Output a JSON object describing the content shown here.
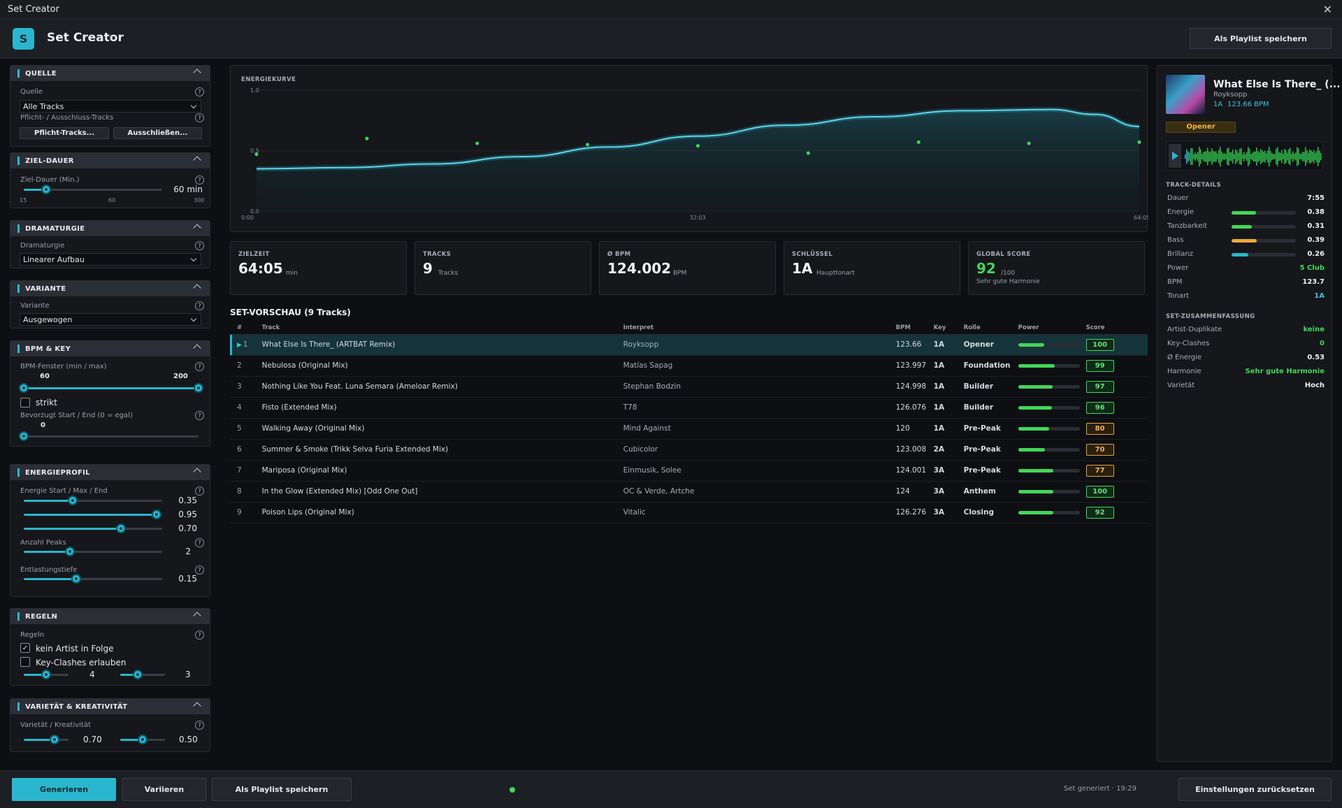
{
  "window": {
    "title": "Set Creator"
  },
  "header": {
    "logo_letter": "S",
    "title": "Set Creator",
    "playlist_button": "Als Playlist speichern"
  },
  "source": {
    "section": "QUELLE",
    "label": "Quelle",
    "value": "Alle Tracks",
    "required_label": "Pflicht- / Ausschluss-Tracks",
    "required_button": "Pflicht-Tracks...",
    "exclude_button": "Ausschließen..."
  },
  "duration": {
    "section": "ZIEL-DAUER",
    "label": "Ziel-Dauer (Min.)",
    "value_text": "60 min",
    "value": 60,
    "min": "15",
    "mid": "60",
    "max": "300"
  },
  "dramaturgy": {
    "section": "DRAMATURGIE",
    "label": "Dramaturgie",
    "value": "Linearer Aufbau"
  },
  "variant": {
    "section": "VARIANTE",
    "label": "Variante",
    "value": "Ausgewogen"
  },
  "bpmkey": {
    "section": "BPM & KEY",
    "label": "BPM-Fenster (min / max)",
    "min": "60",
    "max": "200",
    "strict_label": "strikt",
    "start_label": "Bevorzugt Start / End (0 = egal)",
    "start_value": "0"
  },
  "energy": {
    "section": "ENERGIEPROFIL",
    "label": "Energie Start / Max / End",
    "start": "0.35",
    "max": "0.95",
    "end": "0.70",
    "peaks_label": "Anzahl Peaks",
    "peaks": "2",
    "relief_label": "Entlastungstiefe",
    "relief": "0.15"
  },
  "rules": {
    "section": "REGELN",
    "label": "Regeln",
    "no_artist_label": "kein Artist in Folge",
    "no_artist_checked": "✓",
    "key_clash_label": "Key-Clashes erlauben",
    "slider_a": "4",
    "slider_b": "3"
  },
  "variety": {
    "section": "VARIETÄT & KREATIVITÄT",
    "label": "Varietät / Kreativität",
    "variety": "0.70",
    "creativity": "0.50"
  },
  "chart_data": {
    "type": "line",
    "title": "ENERGIEKURVE",
    "x_ticks": [
      "0:00",
      "32:03",
      "64:05"
    ],
    "y_ticks": [
      "1.0",
      "0.5",
      "0.0"
    ],
    "ylim": [
      0,
      1
    ],
    "curve_x": [
      0,
      0.1,
      0.2,
      0.3,
      0.4,
      0.5,
      0.6,
      0.7,
      0.8,
      0.9,
      0.95,
      1
    ],
    "curve_y": [
      0.35,
      0.36,
      0.39,
      0.45,
      0.53,
      0.62,
      0.71,
      0.78,
      0.83,
      0.84,
      0.8,
      0.7
    ],
    "points_x": [
      0,
      0.125,
      0.25,
      0.375,
      0.5,
      0.625,
      0.75,
      0.875,
      1
    ],
    "points_y": [
      0.47,
      0.6,
      0.56,
      0.55,
      0.54,
      0.48,
      0.57,
      0.56,
      0.57
    ]
  },
  "stats": {
    "zielzeit": {
      "label": "ZIELZEIT",
      "value": "64:05",
      "unit": "min"
    },
    "tracks": {
      "label": "TRACKS",
      "value": "9",
      "unit": "Tracks"
    },
    "bpm": {
      "label": "Ø BPM",
      "value": "124.002",
      "unit": "BPM"
    },
    "key": {
      "label": "SCHLÜSSEL",
      "value": "1A",
      "unit": "Haupttonart"
    },
    "score": {
      "label": "GLOBAL SCORE",
      "value": "92",
      "unit": "/100",
      "note": "Sehr gute Harmonie"
    }
  },
  "preview": {
    "title": "SET-VORSCHAU  (9 Tracks)",
    "columns": [
      "#",
      "Track",
      "Interpret",
      "BPM",
      "Key",
      "Rolle",
      "Power",
      "Score"
    ],
    "rows": [
      {
        "n": "1",
        "track": "What Else Is There_ (ARTBAT Remix)",
        "artist": "Royksopp",
        "bpm": "123.66",
        "key": "1A",
        "role": "Opener",
        "power": 0.42,
        "score": "100"
      },
      {
        "n": "2",
        "track": "Nebulosa (Original Mix)",
        "artist": "Matías Sapag",
        "bpm": "123.997",
        "key": "1A",
        "role": "Foundation",
        "power": 0.6,
        "score": "99"
      },
      {
        "n": "3",
        "track": "Nothing Like You Feat. Luna Semara (Ameloar Remix)",
        "artist": "Stephan Bodzin",
        "bpm": "124.998",
        "key": "1A",
        "role": "Builder",
        "power": 0.56,
        "score": "97"
      },
      {
        "n": "4",
        "track": "Fisto (Extended Mix)",
        "artist": "T78",
        "bpm": "126.076",
        "key": "1A",
        "role": "Builder",
        "power": 0.55,
        "score": "96"
      },
      {
        "n": "5",
        "track": "Walking Away (Original Mix)",
        "artist": "Mind Against",
        "bpm": "120",
        "key": "1A",
        "role": "Pre-Peak",
        "power": 0.5,
        "score": "80"
      },
      {
        "n": "6",
        "track": "Summer & Smoke (Trikk Selva Furia Extended Mix)",
        "artist": "Cubicolor",
        "bpm": "123.008",
        "key": "2A",
        "role": "Pre-Peak",
        "power": 0.44,
        "score": "70"
      },
      {
        "n": "7",
        "track": "Mariposa (Original Mix)",
        "artist": "Einmusik, Solee",
        "bpm": "124.001",
        "key": "3A",
        "role": "Pre-Peak",
        "power": 0.57,
        "score": "77"
      },
      {
        "n": "8",
        "track": "In the Glow (Extended Mix) [Odd One Out]",
        "artist": "OC & Verde, Artche",
        "bpm": "124",
        "key": "3A",
        "role": "Anthem",
        "power": 0.57,
        "score": "100"
      },
      {
        "n": "9",
        "track": "Poison Lips (Original Mix)",
        "artist": "Vitalic",
        "bpm": "126.276",
        "key": "3A",
        "role": "Closing",
        "power": 0.57,
        "score": "92"
      }
    ]
  },
  "now": {
    "title": "What Else Is There_ (...",
    "artist": "Royksopp",
    "key": "1A",
    "bpm": "123.66 BPM",
    "role": "Opener"
  },
  "details": {
    "section": "TRACK-DETAILS",
    "rows": [
      {
        "k": "Dauer",
        "v": "7:55"
      },
      {
        "k": "Energie",
        "v": "0.38",
        "bar": 0.38,
        "color": "#43d65a"
      },
      {
        "k": "Tanzbarkeit",
        "v": "0.31",
        "bar": 0.31,
        "color": "#43d65a"
      },
      {
        "k": "Bass",
        "v": "0.39",
        "bar": 0.39,
        "color": "#f0a83a"
      },
      {
        "k": "Brillanz",
        "v": "0.26",
        "bar": 0.26,
        "color": "#2bb6cf"
      },
      {
        "k": "Power",
        "v": "5  Club",
        "color": "#43d65a"
      },
      {
        "k": "BPM",
        "v": "123.7"
      },
      {
        "k": "Tonart",
        "v": "1A",
        "color": "#35c6e0"
      }
    ]
  },
  "summary": {
    "section": "SET-ZUSAMMENFASSUNG",
    "rows": [
      {
        "k": "Artist-Duplikate",
        "v": "keine",
        "color": "#43d65a"
      },
      {
        "k": "Key-Clashes",
        "v": "0",
        "color": "#43d65a"
      },
      {
        "k": "Ø Energie",
        "v": "0.53"
      },
      {
        "k": "Harmonie",
        "v": "Sehr gute Harmonie",
        "color": "#43d65a"
      },
      {
        "k": "Varietät",
        "v": "Hoch"
      }
    ]
  },
  "footer": {
    "generate": "Generieren",
    "vary": "Variieren",
    "save": "Als Playlist speichern",
    "status": "Set generiert  ·  19:29",
    "reset": "Einstellungen zurücksetzen"
  },
  "colors": {
    "accent": "#2bb6cf",
    "green": "#43d65a",
    "orange": "#e3a534"
  }
}
